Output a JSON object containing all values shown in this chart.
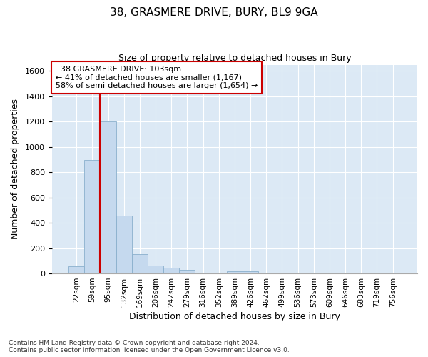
{
  "title": "38, GRASMERE DRIVE, BURY, BL9 9GA",
  "subtitle": "Size of property relative to detached houses in Bury",
  "xlabel": "Distribution of detached houses by size in Bury",
  "ylabel": "Number of detached properties",
  "footer_line1": "Contains HM Land Registry data © Crown copyright and database right 2024.",
  "footer_line2": "Contains public sector information licensed under the Open Government Licence v3.0.",
  "bar_labels": [
    "22sqm",
    "59sqm",
    "95sqm",
    "132sqm",
    "169sqm",
    "206sqm",
    "242sqm",
    "279sqm",
    "316sqm",
    "352sqm",
    "389sqm",
    "426sqm",
    "462sqm",
    "499sqm",
    "536sqm",
    "573sqm",
    "609sqm",
    "646sqm",
    "683sqm",
    "719sqm",
    "756sqm"
  ],
  "bar_values": [
    55,
    900,
    1200,
    460,
    150,
    60,
    45,
    30,
    0,
    0,
    20,
    20,
    0,
    0,
    0,
    0,
    0,
    0,
    0,
    0,
    0
  ],
  "bar_color": "#c5d9ee",
  "bar_edge_color": "#8ab0cc",
  "background_color": "#dce9f5",
  "grid_color": "#ffffff",
  "ylim": [
    0,
    1650
  ],
  "yticks": [
    0,
    200,
    400,
    600,
    800,
    1000,
    1200,
    1400,
    1600
  ],
  "property_label": "38 GRASMERE DRIVE: 103sqm",
  "pct_smaller": 41,
  "count_smaller": 1167,
  "pct_larger": 58,
  "count_larger": 1654,
  "vline_color": "#cc0000",
  "annotation_box_facecolor": "#ffffff",
  "annotation_box_edge": "#cc0000"
}
